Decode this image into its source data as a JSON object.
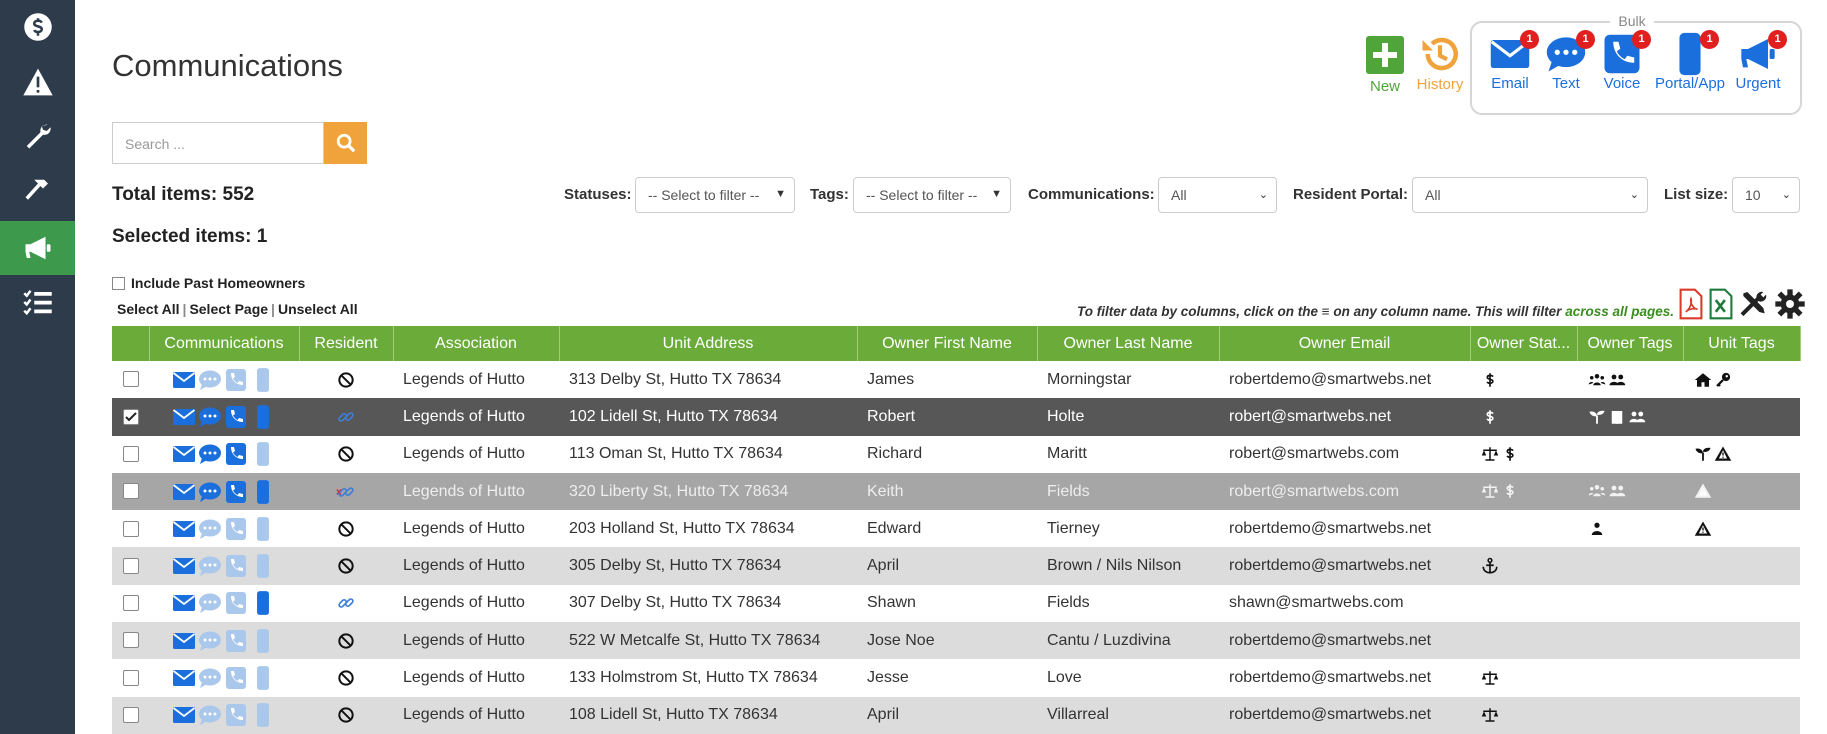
{
  "header": {
    "title": "Communications"
  },
  "actions": [
    {
      "label": "New"
    },
    {
      "label": "History"
    }
  ],
  "bulk": {
    "title": "Bulk",
    "items": [
      {
        "label": "Email",
        "badge": 1
      },
      {
        "label": "Text",
        "badge": 1
      },
      {
        "label": "Voice",
        "badge": 1
      },
      {
        "label": "Portal/App",
        "badge": 1
      },
      {
        "label": "Urgent",
        "badge": 1
      }
    ]
  },
  "search": {
    "placeholder": "Search ..."
  },
  "summary": {
    "total_label": "Total items:",
    "total": 552,
    "selected_label": "Selected items:",
    "selected": 1
  },
  "filters": [
    {
      "label": "Statuses:",
      "value": "-- Select to filter --"
    },
    {
      "label": "Tags:",
      "value": "-- Select to filter --"
    },
    {
      "label": "Communications:",
      "value": "All"
    },
    {
      "label": "Resident Portal:",
      "value": "All"
    },
    {
      "label": "List size:",
      "value": 10
    }
  ],
  "include_past": "Include Past Homeowners",
  "selection_links": [
    "Select All",
    "Select Page",
    "Unselect All"
  ],
  "filter_hint": {
    "text": "To filter data by columns, click on the ≡ on any column name. This will filter",
    "emphasis": "across all pages."
  },
  "table": {
    "columns": [
      "Communications",
      "Resident",
      "Association",
      "Unit Address",
      "Owner First Name",
      "Owner Last Name",
      "Owner Email",
      "Owner Stat...",
      "Owner Tags",
      "Unit Tags"
    ],
    "rows": [
      [
        "Legends of Hutto",
        "313 Delby St, Hutto TX 78634",
        "James",
        "Morningstar",
        "robertdemo@smartwebs.net"
      ],
      [
        "Legends of Hutto",
        "102 Lidell St, Hutto TX 78634",
        "Robert",
        "Holte",
        "robert@smartwebs.net"
      ],
      [
        "Legends of Hutto",
        "113 Oman St, Hutto TX 78634",
        "Richard",
        "Maritt",
        "robert@smartwebs.com"
      ],
      [
        "Legends of Hutto",
        "320 Liberty St, Hutto TX 78634",
        "Keith",
        "Fields",
        "robert@smartwebs.com"
      ],
      [
        "Legends of Hutto",
        "203 Holland St, Hutto TX 78634",
        "Edward",
        "Tierney",
        "robertdemo@smartwebs.net"
      ],
      [
        "Legends of Hutto",
        "305 Delby St, Hutto TX 78634",
        "April",
        "Brown / Nils Nilson",
        "robertdemo@smartwebs.net"
      ],
      [
        "Legends of Hutto",
        "307 Delby St, Hutto TX 78634",
        "Shawn",
        "Fields",
        "shawn@smartwebs.com"
      ],
      [
        "Legends of Hutto",
        "522 W Metcalfe St, Hutto TX 78634",
        "Jose Noe",
        "Cantu / Luzdivina",
        "robertdemo@smartwebs.net"
      ],
      [
        "Legends of Hutto",
        "133 Holmstrom St, Hutto TX 78634",
        "Jesse",
        "Love",
        "robertdemo@smartwebs.net"
      ],
      [
        "Legends of Hutto",
        "108 Lidell St, Hutto TX 78634",
        "April",
        "Villarreal",
        "robertdemo@smartwebs.net"
      ]
    ]
  }
}
